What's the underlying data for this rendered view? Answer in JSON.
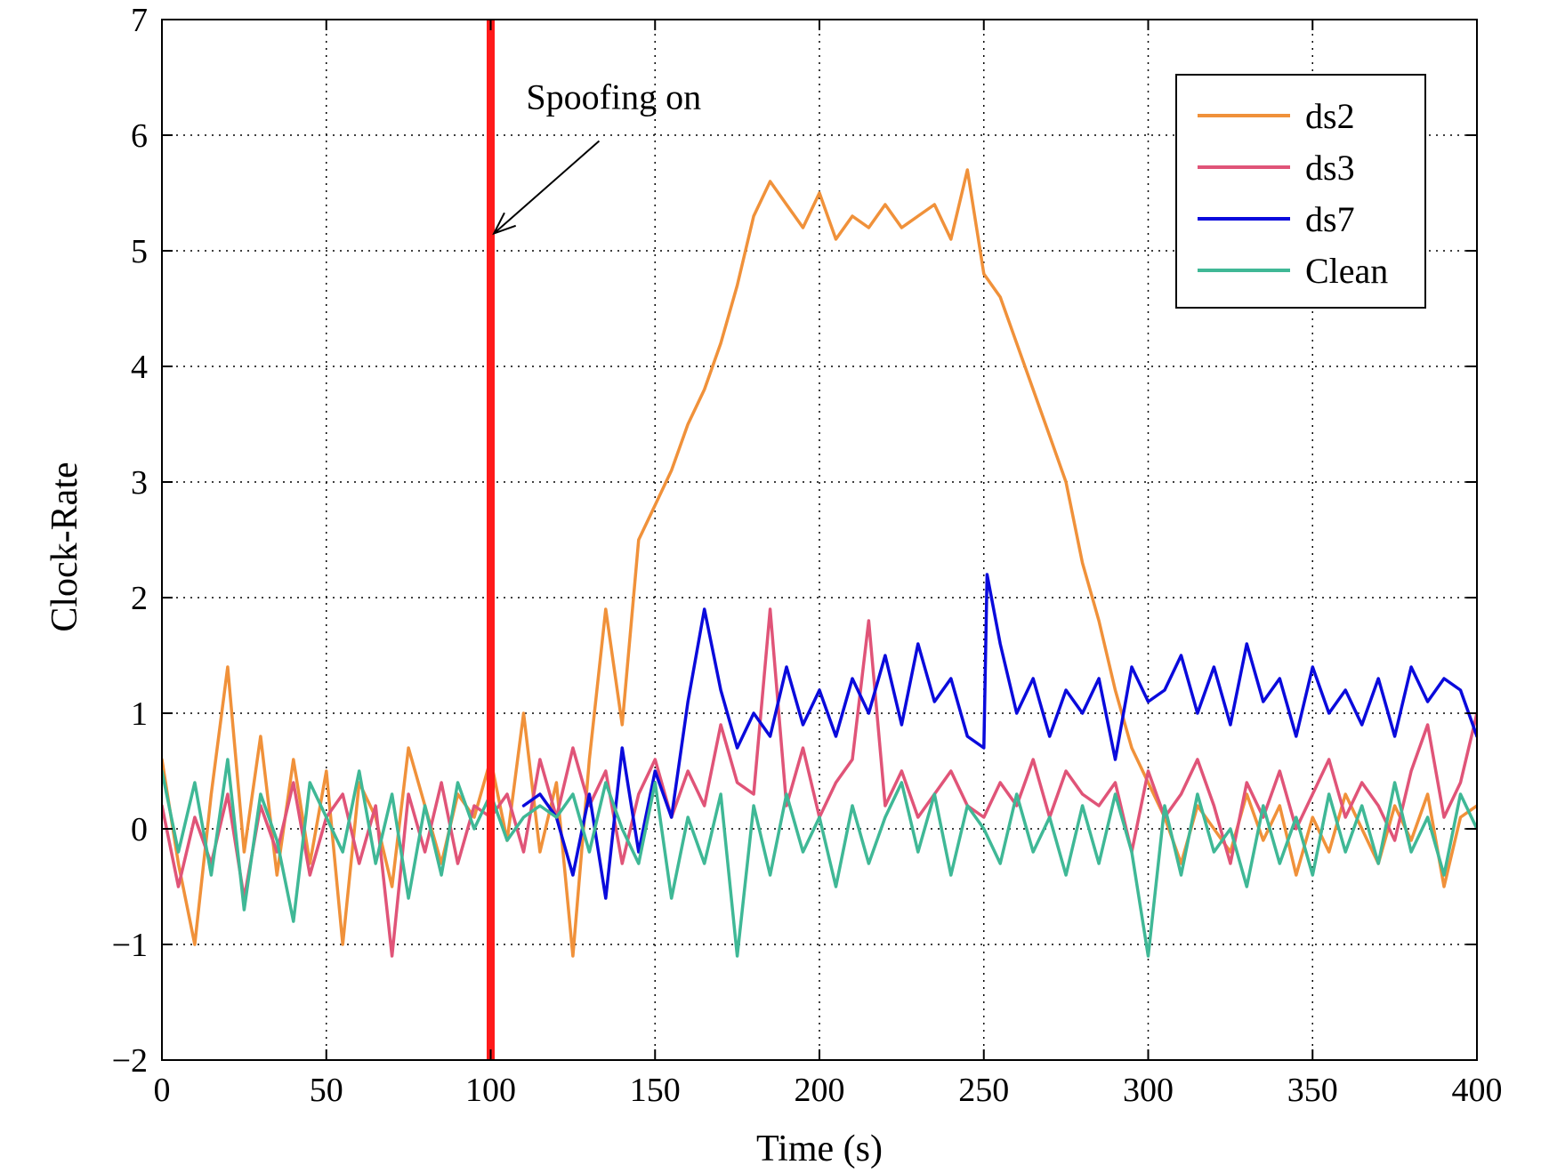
{
  "chart_data": {
    "type": "line",
    "title": "",
    "xlabel": "Time (s)",
    "ylabel": "Clock-Rate",
    "xlim": [
      0,
      400
    ],
    "ylim": [
      -2,
      7
    ],
    "xticks": [
      0,
      50,
      100,
      150,
      200,
      250,
      300,
      350,
      400
    ],
    "xtick_labels": [
      "0",
      "50",
      "100",
      "150",
      "200",
      "250",
      "300",
      "350",
      "400"
    ],
    "yticks": [
      -2,
      -1,
      0,
      1,
      2,
      3,
      4,
      5,
      6,
      7
    ],
    "ytick_labels": [
      "−2",
      "−1",
      "0",
      "1",
      "2",
      "3",
      "4",
      "5",
      "6",
      "7"
    ],
    "grid": true,
    "legend_position": "top-right",
    "annotation": {
      "text": "Spoofing on",
      "marker_x": 100,
      "marker_color": "#ff1a1a",
      "arrow_tip": [
        101,
        5.15
      ],
      "arrow_tail": [
        133,
        5.95
      ]
    },
    "series": [
      {
        "name": "ds2",
        "color": "#f0913a",
        "x": [
          0,
          5,
          10,
          15,
          20,
          25,
          30,
          35,
          40,
          45,
          50,
          55,
          60,
          65,
          70,
          75,
          80,
          85,
          90,
          95,
          100,
          105,
          110,
          115,
          120,
          125,
          130,
          135,
          140,
          145,
          150,
          155,
          160,
          165,
          170,
          175,
          180,
          185,
          190,
          195,
          200,
          205,
          210,
          215,
          220,
          225,
          230,
          235,
          240,
          245,
          250,
          255,
          260,
          265,
          270,
          275,
          280,
          285,
          290,
          295,
          300,
          305,
          310,
          315,
          320,
          325,
          330,
          335,
          340,
          345,
          350,
          355,
          360,
          365,
          370,
          375,
          380,
          385,
          390,
          395,
          400
        ],
        "values": [
          0.6,
          -0.3,
          -1.0,
          0.3,
          1.4,
          -0.2,
          0.8,
          -0.4,
          0.6,
          -0.3,
          0.5,
          -1.0,
          0.4,
          0.1,
          -0.5,
          0.7,
          0.2,
          -0.3,
          0.3,
          0.1,
          0.6,
          -0.1,
          1.0,
          -0.2,
          0.4,
          -1.1,
          0.6,
          1.9,
          0.9,
          2.5,
          2.8,
          3.1,
          3.5,
          3.8,
          4.2,
          4.7,
          5.3,
          5.6,
          5.4,
          5.2,
          5.5,
          5.1,
          5.3,
          5.2,
          5.4,
          5.2,
          5.3,
          5.4,
          5.1,
          5.7,
          4.8,
          4.6,
          4.2,
          3.8,
          3.4,
          3.0,
          2.3,
          1.8,
          1.2,
          0.7,
          0.4,
          0.1,
          -0.3,
          0.2,
          0.0,
          -0.2,
          0.3,
          -0.1,
          0.2,
          -0.4,
          0.1,
          -0.2,
          0.3,
          0.0,
          -0.3,
          0.2,
          -0.1,
          0.3,
          -0.5,
          0.1,
          0.2
        ]
      },
      {
        "name": "ds3",
        "color": "#e05478",
        "x": [
          0,
          5,
          10,
          15,
          20,
          25,
          30,
          35,
          40,
          45,
          50,
          55,
          60,
          65,
          70,
          75,
          80,
          85,
          90,
          95,
          100,
          105,
          110,
          115,
          120,
          125,
          130,
          135,
          140,
          145,
          150,
          155,
          160,
          165,
          170,
          175,
          180,
          185,
          190,
          195,
          200,
          205,
          210,
          215,
          220,
          225,
          230,
          235,
          240,
          245,
          250,
          255,
          260,
          265,
          270,
          275,
          280,
          285,
          290,
          295,
          300,
          305,
          310,
          315,
          320,
          325,
          330,
          335,
          340,
          345,
          350,
          355,
          360,
          365,
          370,
          375,
          380,
          385,
          390,
          395,
          400
        ],
        "values": [
          0.2,
          -0.5,
          0.1,
          -0.3,
          0.3,
          -0.6,
          0.2,
          -0.2,
          0.4,
          -0.4,
          0.1,
          0.3,
          -0.3,
          0.2,
          -1.1,
          0.3,
          -0.2,
          0.4,
          -0.3,
          0.2,
          0.1,
          0.3,
          -0.2,
          0.6,
          0.1,
          0.7,
          0.2,
          0.5,
          -0.3,
          0.3,
          0.6,
          0.1,
          0.5,
          0.2,
          0.9,
          0.4,
          0.3,
          1.9,
          0.2,
          0.7,
          0.1,
          0.4,
          0.6,
          1.8,
          0.2,
          0.5,
          0.1,
          0.3,
          0.5,
          0.2,
          0.1,
          0.4,
          0.2,
          0.6,
          0.1,
          0.5,
          0.3,
          0.2,
          0.4,
          -0.2,
          0.5,
          0.1,
          0.3,
          0.6,
          0.2,
          -0.3,
          0.4,
          0.1,
          0.5,
          0.0,
          0.3,
          0.6,
          0.1,
          0.4,
          0.2,
          -0.1,
          0.5,
          0.9,
          0.1,
          0.4,
          1.0
        ]
      },
      {
        "name": "ds7",
        "color": "#0a0adc",
        "x": [
          110,
          115,
          120,
          125,
          130,
          135,
          140,
          145,
          150,
          155,
          160,
          165,
          170,
          175,
          180,
          185,
          190,
          195,
          200,
          205,
          210,
          215,
          220,
          225,
          230,
          235,
          240,
          245,
          250,
          251,
          255,
          260,
          265,
          270,
          275,
          280,
          285,
          290,
          295,
          300,
          305,
          310,
          315,
          320,
          325,
          330,
          335,
          340,
          345,
          350,
          355,
          360,
          365,
          370,
          375,
          380,
          385,
          390,
          395,
          400
        ],
        "values": [
          0.2,
          0.3,
          0.1,
          -0.4,
          0.3,
          -0.6,
          0.7,
          -0.2,
          0.5,
          0.1,
          1.1,
          1.9,
          1.2,
          0.7,
          1.0,
          0.8,
          1.4,
          0.9,
          1.2,
          0.8,
          1.3,
          1.0,
          1.5,
          0.9,
          1.6,
          1.1,
          1.3,
          0.8,
          0.7,
          2.2,
          1.6,
          1.0,
          1.3,
          0.8,
          1.2,
          1.0,
          1.3,
          0.6,
          1.4,
          1.1,
          1.2,
          1.5,
          1.0,
          1.4,
          0.9,
          1.6,
          1.1,
          1.3,
          0.8,
          1.4,
          1.0,
          1.2,
          0.9,
          1.3,
          0.8,
          1.4,
          1.1,
          1.3,
          1.2,
          0.8
        ]
      },
      {
        "name": "Clean",
        "color": "#3fb896",
        "x": [
          0,
          5,
          10,
          15,
          20,
          25,
          30,
          35,
          40,
          45,
          50,
          55,
          60,
          65,
          70,
          75,
          80,
          85,
          90,
          95,
          100,
          105,
          110,
          115,
          120,
          125,
          130,
          135,
          140,
          145,
          150,
          155,
          160,
          165,
          170,
          175,
          180,
          185,
          190,
          195,
          200,
          205,
          210,
          215,
          220,
          225,
          230,
          235,
          240,
          245,
          250,
          255,
          260,
          265,
          270,
          275,
          280,
          285,
          290,
          295,
          300,
          305,
          310,
          315,
          320,
          325,
          330,
          335,
          340,
          345,
          350,
          355,
          360,
          365,
          370,
          375,
          380,
          385,
          390,
          395,
          400
        ],
        "values": [
          0.5,
          -0.2,
          0.4,
          -0.4,
          0.6,
          -0.7,
          0.3,
          -0.1,
          -0.8,
          0.4,
          0.1,
          -0.2,
          0.5,
          -0.3,
          0.3,
          -0.6,
          0.2,
          -0.4,
          0.4,
          0.0,
          0.3,
          -0.1,
          0.1,
          0.2,
          0.1,
          0.3,
          -0.2,
          0.4,
          0.0,
          -0.3,
          0.4,
          -0.6,
          0.1,
          -0.3,
          0.3,
          -1.1,
          0.2,
          -0.4,
          0.3,
          -0.2,
          0.1,
          -0.5,
          0.2,
          -0.3,
          0.1,
          0.4,
          -0.2,
          0.3,
          -0.4,
          0.2,
          0.0,
          -0.3,
          0.3,
          -0.2,
          0.1,
          -0.4,
          0.2,
          -0.3,
          0.3,
          -0.2,
          -1.1,
          0.2,
          -0.4,
          0.3,
          -0.2,
          0.0,
          -0.5,
          0.2,
          -0.3,
          0.1,
          -0.4,
          0.3,
          -0.2,
          0.2,
          -0.3,
          0.4,
          -0.2,
          0.1,
          -0.4,
          0.3,
          0.0
        ]
      }
    ]
  }
}
